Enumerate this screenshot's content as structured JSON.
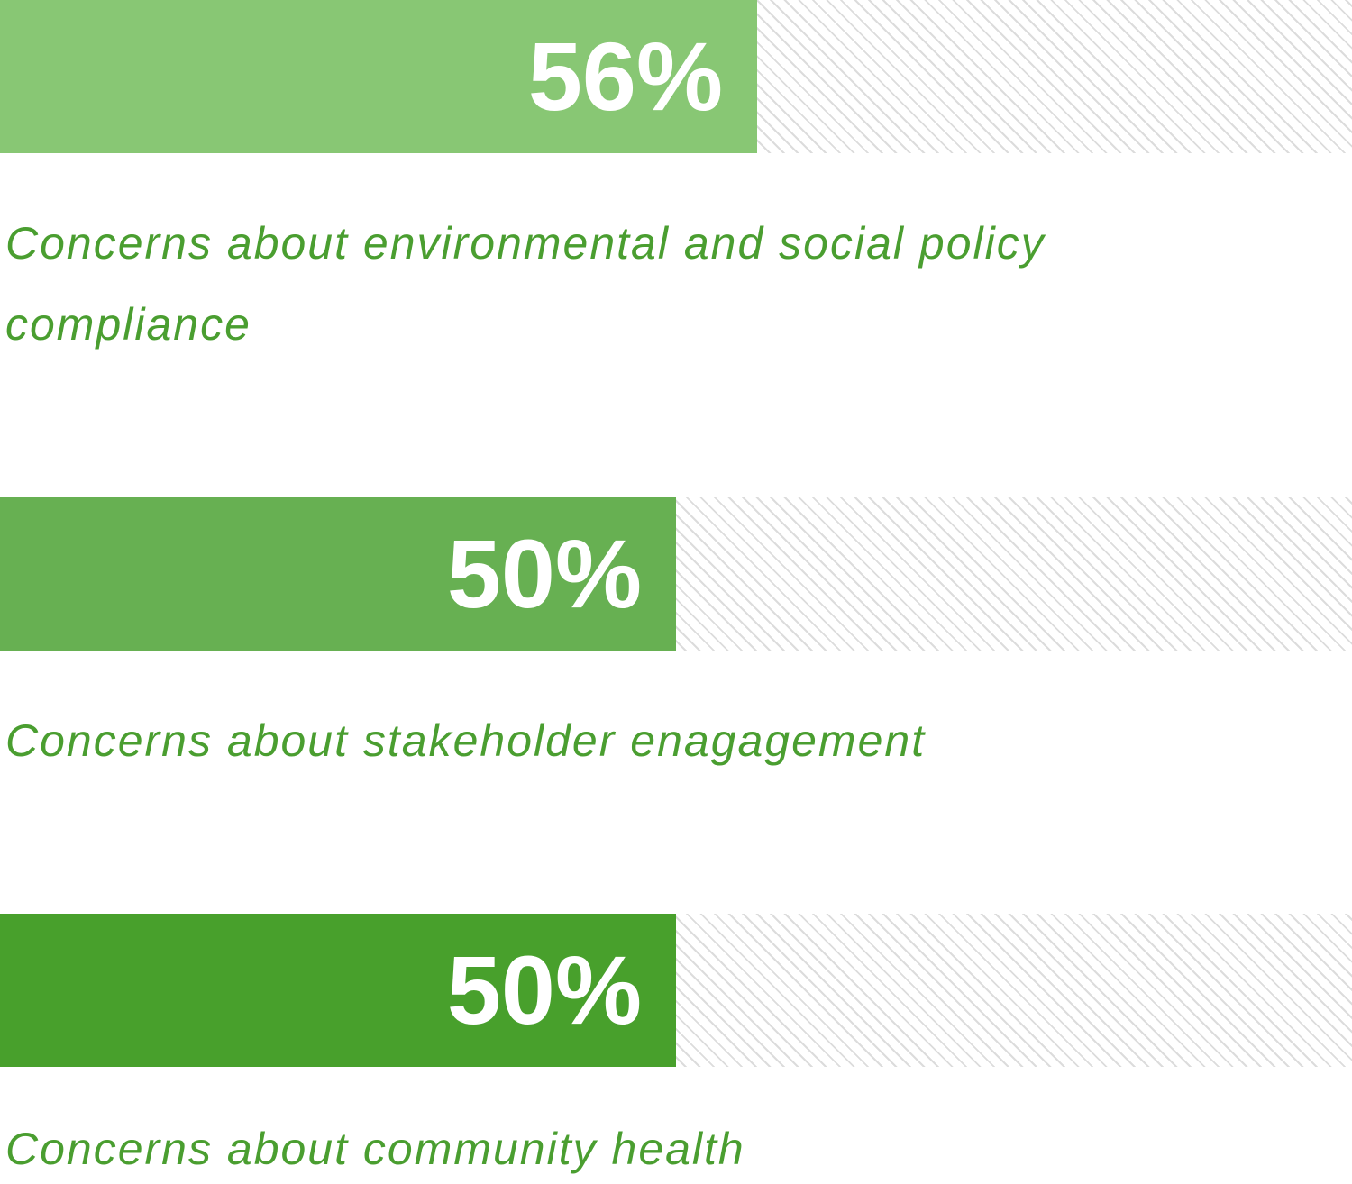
{
  "chart_data": {
    "type": "bar",
    "categories": [
      "Concerns about environmental and social policy compliance",
      "Concerns about stakeholder enagagement",
      "Concerns about community health"
    ],
    "values": [
      56,
      50,
      50
    ],
    "value_labels": [
      "56%",
      "50%",
      "50%"
    ],
    "colors": [
      "#88c774",
      "#67b052",
      "#48a02c"
    ],
    "xlim": [
      0,
      100
    ]
  }
}
